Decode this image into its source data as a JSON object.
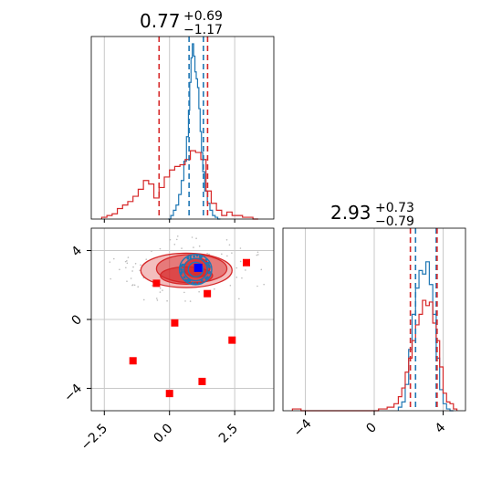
{
  "chart_data": [
    {
      "type": "line",
      "panel": "top-left 1D marginal (x)",
      "title": {
        "median": "0.77",
        "upper": "+0.69",
        "lower": "−1.17"
      },
      "xlim": [
        -3.0,
        4.0
      ],
      "x_grid": [
        -2.5,
        0.0,
        2.5
      ],
      "series": [
        {
          "color": "#1f77b4",
          "quantiles": [
            0.75,
            1.3
          ],
          "centers": [
            0.0,
            0.1,
            0.2,
            0.3,
            0.4,
            0.5,
            0.6,
            0.7,
            0.75,
            0.8,
            0.85,
            0.9,
            0.95,
            1.0,
            1.05,
            1.1,
            1.15,
            1.2,
            1.25,
            1.3,
            1.4,
            1.5,
            1.6,
            1.7,
            1.8,
            1.9
          ],
          "heights": [
            0,
            0.02,
            0.05,
            0.08,
            0.14,
            0.22,
            0.33,
            0.47,
            0.62,
            0.78,
            0.92,
            1.0,
            0.93,
            0.84,
            0.8,
            0.75,
            0.63,
            0.5,
            0.38,
            0.27,
            0.16,
            0.09,
            0.05,
            0.02,
            0.01,
            0
          ]
        },
        {
          "color": "#d62728",
          "quantiles": [
            -0.4,
            1.46
          ],
          "centers": [
            -2.5,
            -2.3,
            -2.1,
            -1.9,
            -1.7,
            -1.5,
            -1.3,
            -1.1,
            -0.9,
            -0.7,
            -0.5,
            -0.3,
            -0.1,
            0.1,
            0.3,
            0.5,
            0.7,
            0.9,
            1.1,
            1.3,
            1.5,
            1.7,
            1.9,
            2.1,
            2.3,
            2.5,
            2.7,
            2.9,
            3.1,
            3.3
          ],
          "heights": [
            0.01,
            0.02,
            0.03,
            0.06,
            0.08,
            0.1,
            0.13,
            0.17,
            0.22,
            0.2,
            0.12,
            0.18,
            0.24,
            0.28,
            0.3,
            0.31,
            0.34,
            0.39,
            0.38,
            0.34,
            0.16,
            0.09,
            0.05,
            0.02,
            0.04,
            0.02,
            0.02,
            0.01,
            0.01,
            0
          ]
        }
      ]
    },
    {
      "type": "line",
      "panel": "bottom-right 1D marginal (y)",
      "title": {
        "median": "2.93",
        "upper": "+0.73",
        "lower": "−0.79"
      },
      "xlim": [
        -5.3,
        5.3
      ],
      "x_grid": [
        -4,
        0,
        4
      ],
      "series": [
        {
          "color": "#1f77b4",
          "quantiles": [
            2.4,
            3.6
          ],
          "centers": [
            1.5,
            1.7,
            1.9,
            2.1,
            2.3,
            2.5,
            2.7,
            2.9,
            3.1,
            3.3,
            3.5,
            3.7,
            3.9,
            4.1,
            4.3,
            4.5
          ],
          "heights": [
            0.02,
            0.05,
            0.15,
            0.35,
            0.55,
            0.7,
            0.8,
            0.78,
            0.85,
            0.72,
            0.55,
            0.3,
            0.12,
            0.04,
            0.01,
            0
          ]
        },
        {
          "color": "#d62728",
          "quantiles": [
            2.1,
            3.65
          ],
          "centers": [
            -4.5,
            -4.0,
            -3.0,
            -2.0,
            -1.0,
            0.0,
            0.5,
            1.0,
            1.3,
            1.5,
            1.7,
            1.9,
            2.1,
            2.3,
            2.5,
            2.7,
            2.9,
            3.1,
            3.3,
            3.5,
            3.7,
            3.9,
            4.1,
            4.3,
            4.5,
            4.7
          ],
          "heights": [
            0.01,
            0.0,
            0.0,
            0.0,
            0.0,
            0.0,
            0.01,
            0.02,
            0.04,
            0.08,
            0.13,
            0.22,
            0.3,
            0.4,
            0.49,
            0.55,
            0.63,
            0.6,
            0.62,
            0.5,
            0.4,
            0.25,
            0.1,
            0.05,
            0.04,
            0.01
          ]
        }
      ]
    },
    {
      "type": "scatter",
      "panel": "bottom-left 2D joint",
      "xlim": [
        -3.0,
        4.0
      ],
      "ylim": [
        -5.3,
        5.3
      ],
      "x_ticks": [
        "−2.5",
        "0.0",
        "2.5"
      ],
      "y_ticks": [
        "4",
        "0",
        "−4"
      ],
      "x_tick_values": [
        -2.5,
        0.0,
        2.5
      ],
      "y_tick_values": [
        4,
        0,
        -4
      ],
      "red_contours": [
        {
          "cx": 0.65,
          "cy": 2.85,
          "rx": 1.75,
          "ry": 1.0,
          "fill_opacity": 0.3
        },
        {
          "cx": 0.85,
          "cy": 2.95,
          "rx": 1.35,
          "ry": 0.82,
          "fill_opacity": 0.45
        },
        {
          "cx": 0.65,
          "cy": 2.55,
          "rx": 1.0,
          "ry": 0.5,
          "fill_opacity": 0.6
        },
        {
          "cx": 1.05,
          "cy": 3.0,
          "rx": 0.5,
          "ry": 0.55,
          "fill_opacity": 0.75
        }
      ],
      "blue_contours": [
        {
          "cx": 1.0,
          "cy": 2.9,
          "rx": 0.62,
          "ry": 0.88
        },
        {
          "cx": 1.0,
          "cy": 2.9,
          "rx": 0.45,
          "ry": 0.65
        },
        {
          "cx": 1.0,
          "cy": 2.9,
          "rx": 0.28,
          "ry": 0.42
        }
      ],
      "blue_marker": {
        "x": 1.1,
        "y": 3.0
      },
      "red_markers": [
        {
          "x": -0.5,
          "y": 2.1
        },
        {
          "x": 1.45,
          "y": 1.5
        },
        {
          "x": 2.95,
          "y": 3.3
        },
        {
          "x": 0.2,
          "y": -0.2
        },
        {
          "x": 2.4,
          "y": -1.2
        },
        {
          "x": -1.4,
          "y": -2.4
        },
        {
          "x": 1.25,
          "y": -3.6
        },
        {
          "x": 0.0,
          "y": -4.3
        }
      ]
    }
  ],
  "colors": {
    "red": "#d62728",
    "blue": "#1f77b4",
    "grid": "#c8c8c8",
    "axis": "#000000"
  }
}
